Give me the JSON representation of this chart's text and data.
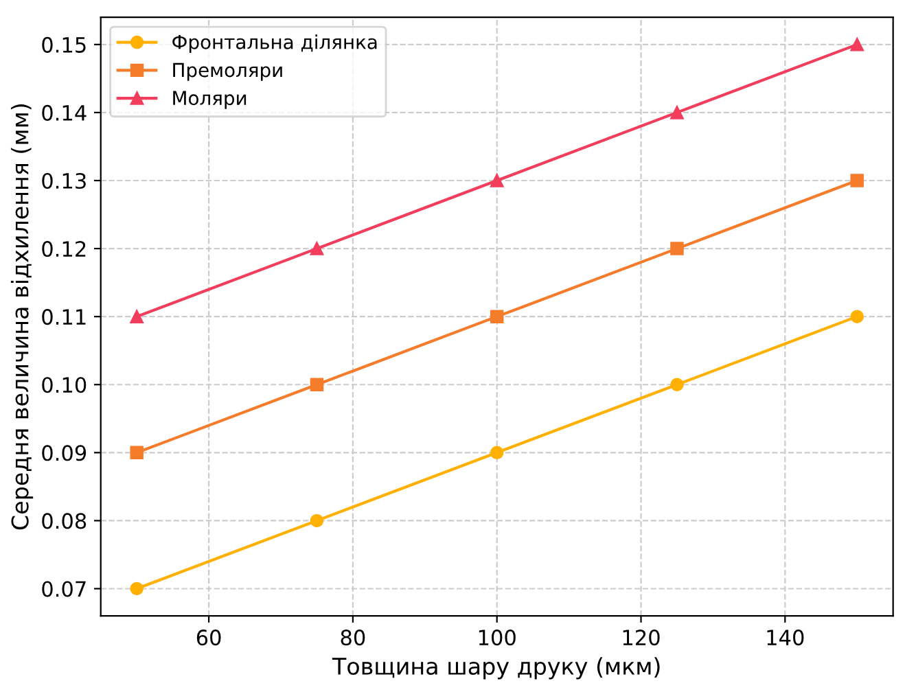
{
  "chart_data": {
    "type": "line",
    "xlabel": "Товщина шару друку (мкм)",
    "ylabel": "Середня величина відхилення (мм)",
    "x": [
      50,
      75,
      100,
      125,
      150
    ],
    "series": [
      {
        "name": "Фронтальна ділянка",
        "color": "#ffb000",
        "marker": "circle",
        "values": [
          0.07,
          0.08,
          0.09,
          0.1,
          0.11
        ]
      },
      {
        "name": "Премоляри",
        "color": "#f57c2a",
        "marker": "square",
        "values": [
          0.09,
          0.1,
          0.11,
          0.12,
          0.13
        ]
      },
      {
        "name": "Моляри",
        "color": "#f23d5c",
        "marker": "triangle",
        "values": [
          0.11,
          0.12,
          0.13,
          0.14,
          0.15
        ]
      }
    ],
    "xlim": [
      45,
      155
    ],
    "xticks": [
      60,
      80,
      100,
      120,
      140
    ],
    "ylim": [
      0.066,
      0.154
    ],
    "yticks": [
      {
        "value": 0.07,
        "label": "0.07"
      },
      {
        "value": 0.08,
        "label": "0.08"
      },
      {
        "value": 0.09,
        "label": "0.09"
      },
      {
        "value": 0.1,
        "label": "0.10"
      },
      {
        "value": 0.11,
        "label": "0.11"
      },
      {
        "value": 0.12,
        "label": "0.12"
      },
      {
        "value": 0.13,
        "label": "0.13"
      },
      {
        "value": 0.14,
        "label": "0.14"
      },
      {
        "value": 0.15,
        "label": "0.15"
      }
    ],
    "grid": true,
    "legend": "top left",
    "line_style": "solid"
  }
}
